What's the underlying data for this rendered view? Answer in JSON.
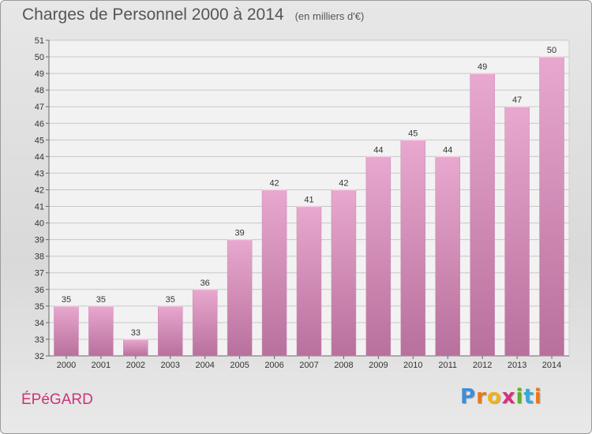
{
  "title": "Charges de Personnel 2000 à 2014",
  "subtitle": "(en milliers d'€)",
  "place": "ÉPéGARD",
  "brand": {
    "text": "Proxiti",
    "letter_colors": [
      "#3d8ed8",
      "#e8781e",
      "#f0b21c",
      "#d8307a",
      "#5fae2e",
      "#38a8d8",
      "#e8781e"
    ]
  },
  "colors": {
    "bar_top": "#e8a8cf",
    "bar_bottom": "#b8709c",
    "bar_edge": "#c98ab2",
    "place": "#cc3377"
  },
  "chart_data": {
    "type": "bar",
    "categories": [
      "2000",
      "2001",
      "2002",
      "2003",
      "2004",
      "2005",
      "2006",
      "2007",
      "2008",
      "2009",
      "2010",
      "2011",
      "2012",
      "2013",
      "2014"
    ],
    "values": [
      35,
      35,
      33,
      35,
      36,
      39,
      42,
      41,
      42,
      44,
      45,
      44,
      49,
      47,
      50
    ],
    "ylim": [
      32,
      51
    ],
    "yticks": [
      32,
      33,
      34,
      35,
      36,
      37,
      38,
      39,
      40,
      41,
      42,
      43,
      44,
      45,
      46,
      47,
      48,
      49,
      50,
      51
    ],
    "grid": true,
    "data_labels": true
  }
}
